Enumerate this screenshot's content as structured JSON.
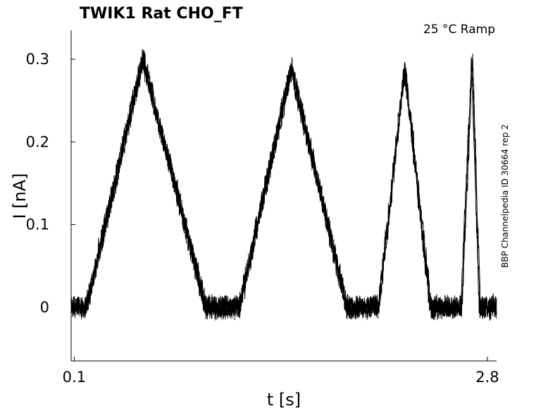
{
  "chart_data": {
    "type": "line",
    "title": "TWIK1  Rat  CHO_FT",
    "condition": "25 °C  Ramp",
    "side_label": "BBP Channelpedia ID 30664 rep 2",
    "xlabel": "t [s]",
    "ylabel": "I [nA]",
    "xlim": [
      0.08,
      2.86
    ],
    "ylim": [
      -0.065,
      0.335
    ],
    "x_ticks": [
      {
        "value": 0.1,
        "label": "0.1"
      },
      {
        "value": 2.8,
        "label": "2.8"
      }
    ],
    "y_ticks": [
      {
        "value": 0,
        "label": "0"
      },
      {
        "value": 0.1,
        "label": "0.1"
      },
      {
        "value": 0.2,
        "label": "0.2"
      },
      {
        "value": 0.3,
        "label": "0.3"
      }
    ],
    "grid": false,
    "line_color": "#000000",
    "noise_amplitude": 0.012,
    "series": [
      {
        "x": [
          0.08,
          0.1,
          0.18,
          0.55,
          0.96,
          1.01,
          1.18,
          1.52,
          1.88,
          2.05,
          2.09,
          2.26,
          2.43,
          2.5,
          2.63,
          2.7,
          2.75,
          2.86
        ],
        "values": [
          0,
          0,
          0,
          0.3,
          0,
          0,
          0,
          0.29,
          0,
          0,
          0,
          0.29,
          0,
          0,
          0,
          0.3,
          0,
          0
        ]
      }
    ]
  }
}
